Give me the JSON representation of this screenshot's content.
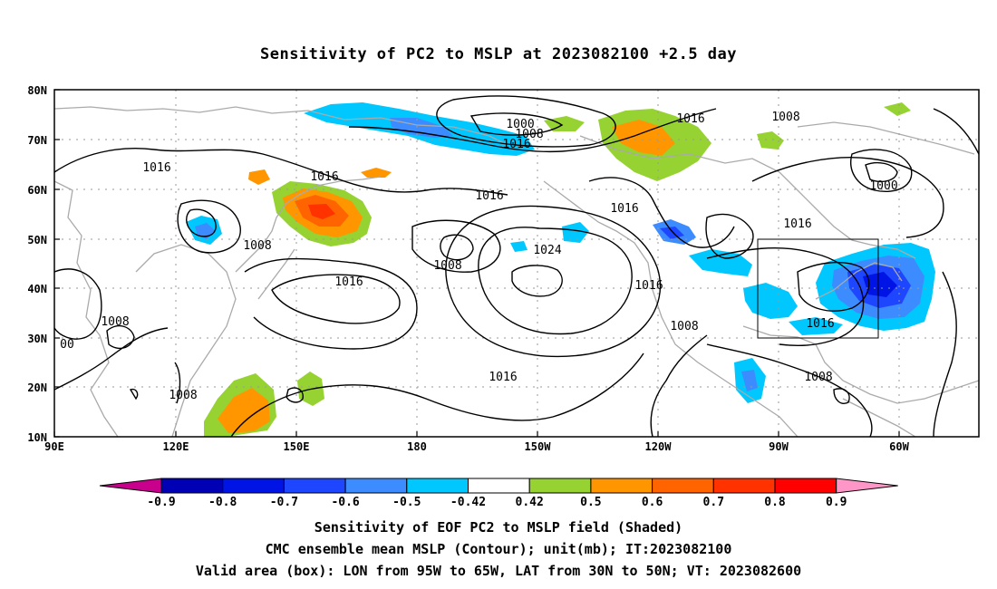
{
  "title": "Sensitivity of PC2 to MSLP at 2023082100 +2.5 day",
  "map": {
    "lat_labels": [
      "80N",
      "70N",
      "60N",
      "50N",
      "40N",
      "30N",
      "20N",
      "10N"
    ],
    "lon_labels": [
      "90E",
      "120E",
      "150E",
      "180",
      "150W",
      "120W",
      "90W",
      "60W"
    ],
    "valid_box": {
      "lon_from": "95W",
      "lon_to": "65W",
      "lat_from": "30N",
      "lat_to": "50N"
    },
    "contour_labels": [
      "1000",
      "1008",
      "1016",
      "1016",
      "1008",
      "1016",
      "1016",
      "1016",
      "1000",
      "1008",
      "1008",
      "1016",
      "1024",
      "1016",
      "1008",
      "1016",
      "1016",
      "1008",
      "00",
      "1008",
      "1016",
      "1008"
    ]
  },
  "colorbar": {
    "labels": [
      "-0.9",
      "-0.8",
      "-0.7",
      "-0.6",
      "-0.5",
      "-0.42",
      "0.42",
      "0.5",
      "0.6",
      "0.7",
      "0.8",
      "0.9"
    ],
    "colors": [
      "#c8008c",
      "#0000b4",
      "#0014e6",
      "#1e46ff",
      "#3c8cff",
      "#00c8ff",
      "#ffffff",
      "#96d232",
      "#ff9600",
      "#ff6400",
      "#ff3200",
      "#ff0000",
      "#ff96c8"
    ]
  },
  "captions": [
    "Sensitivity of EOF PC2 to MSLP field (Shaded)",
    "CMC ensemble mean MSLP (Contour); unit(mb); IT:2023082100",
    "Valid area (box): LON from 95W to 65W, LAT from 30N to 50N; VT: 2023082600"
  ]
}
